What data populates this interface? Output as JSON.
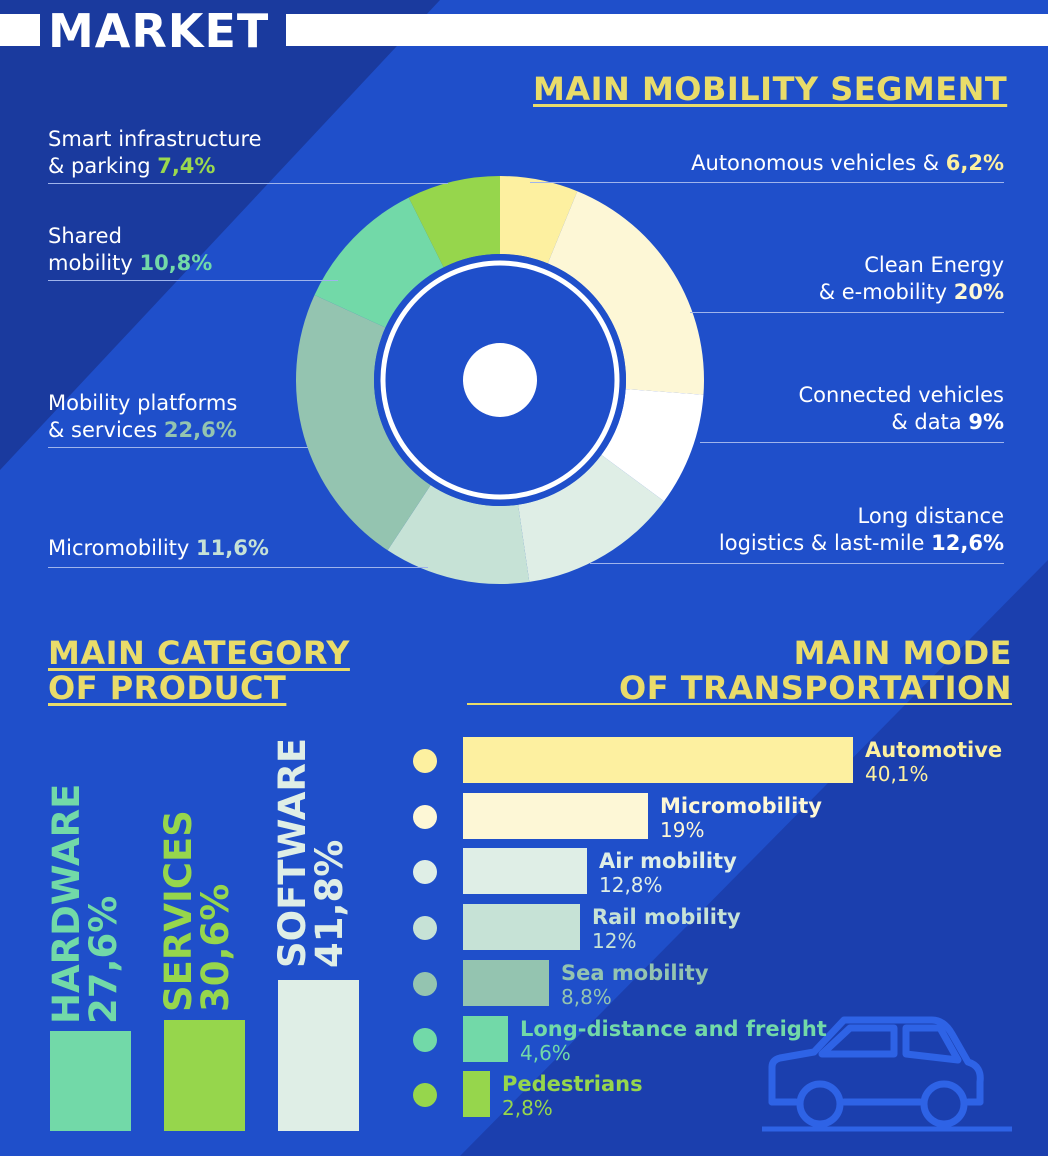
{
  "header": {
    "title": "MARKET"
  },
  "segments_title": "MAIN MOBILITY SEGMENT",
  "category_title": [
    "MAIN CATEGORY",
    "OF PRODUCT"
  ],
  "mode_title": [
    "MAIN MODE",
    "OF TRANSPORTATION"
  ],
  "segment_labels": {
    "smart": {
      "line1": "Smart infrastructure",
      "line2": "& parking ",
      "pct": "7,4%"
    },
    "shared": {
      "line1": "Shared",
      "line2": "mobility ",
      "pct": "10,8%"
    },
    "platforms": {
      "line1": "Mobility platforms",
      "line2": "& services ",
      "pct": "22,6%"
    },
    "micro": {
      "line1": "Micromobility ",
      "pct": "11,6%"
    },
    "autonomous": {
      "line1": "Autonomous vehicles & ",
      "pct": "6,2%"
    },
    "clean": {
      "line1": "Clean Energy",
      "line2": "& e-mobility ",
      "pct": "20%"
    },
    "connected": {
      "line1": "Connected vehicles",
      "line2": "& data ",
      "pct": "9%"
    },
    "logistics": {
      "line1": "Long distance",
      "line2": "logistics & last-mile ",
      "pct": "12,6%"
    }
  },
  "categories": {
    "hardware": {
      "name": "HARDWARE",
      "pct": "27,6%"
    },
    "services": {
      "name": "SERVICES",
      "pct": "30,6%"
    },
    "software": {
      "name": "SOFTWARE",
      "pct": "41,8%"
    }
  },
  "modes": [
    {
      "name": "Automotive",
      "pct": "40,1%"
    },
    {
      "name": "Micromobility",
      "pct": "19%"
    },
    {
      "name": "Air mobility",
      "pct": "12,8%"
    },
    {
      "name": "Rail mobility",
      "pct": "12%"
    },
    {
      "name": "Sea mobility",
      "pct": "8,8%"
    },
    {
      "name": "Long-distance and freight",
      "pct": "4,6%"
    },
    {
      "name": "Pedestrians",
      "pct": "2,8%"
    }
  ],
  "colors": {
    "background": "#1f4fca",
    "dark_background": "#1a3a9e",
    "title_yellow": "#e9dc6a",
    "green_pct": "#9ad84e"
  },
  "icons": [
    "car-icon"
  ],
  "chart_data": [
    {
      "type": "pie",
      "title": "MAIN MOBILITY SEGMENT",
      "categories": [
        "Autonomous vehicles",
        "Clean Energy & e-mobility",
        "Connected vehicles & data",
        "Long distance logistics & last-mile",
        "Micromobility",
        "Mobility platforms & services",
        "Shared mobility",
        "Smart infrastructure & parking"
      ],
      "values": [
        6.2,
        20,
        9,
        12.6,
        11.6,
        22.6,
        10.8,
        7.4
      ],
      "colors": [
        "#fdf0a0",
        "#fdf7d6",
        "#ffffff",
        "#dfeee6",
        "#c6e2d6",
        "#94c4b0",
        "#72d9a8",
        "#96d64c"
      ]
    },
    {
      "type": "bar",
      "title": "MAIN CATEGORY OF PRODUCT",
      "categories": [
        "HARDWARE",
        "SERVICES",
        "SOFTWARE"
      ],
      "values": [
        27.6,
        30.6,
        41.8
      ],
      "colors": [
        "#72d9a8",
        "#96d64c",
        "#dfeee6"
      ]
    },
    {
      "type": "bar",
      "title": "MAIN MODE OF TRANSPORTATION",
      "categories": [
        "Automotive",
        "Micromobility",
        "Air mobility",
        "Rail mobility",
        "Sea mobility",
        "Long-distance and freight",
        "Pedestrians"
      ],
      "values": [
        40.1,
        19,
        12.8,
        12,
        8.8,
        4.6,
        2.8
      ],
      "colors": [
        "#fdf0a0",
        "#fdf7d6",
        "#dfeee6",
        "#c6e2d6",
        "#94c4b0",
        "#72d9a8",
        "#96d64c"
      ]
    }
  ]
}
